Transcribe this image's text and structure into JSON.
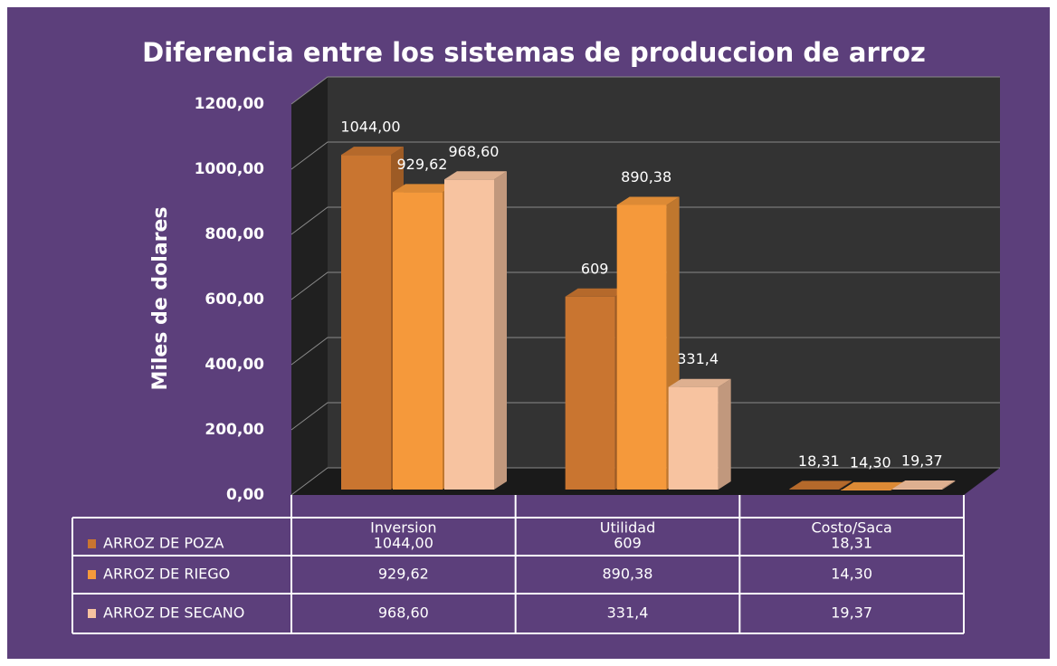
{
  "chart_data": {
    "type": "bar",
    "title": "Diferencia  entre los sistemas de produccion de arroz",
    "y_label": "Miles de dolares",
    "categories": [
      "Inversion",
      "Utilidad",
      "Costo/Saca"
    ],
    "series": [
      {
        "name": "ARROZ DE POZA",
        "color": "#c97530",
        "values": [
          1044,
          609,
          18.31
        ],
        "value_labels": [
          "1044,00",
          "609",
          "18,31"
        ]
      },
      {
        "name": "ARROZ DE RIEGO",
        "color": "#f5993b",
        "values": [
          929.62,
          890.38,
          14.3
        ],
        "value_labels": [
          "929,62",
          "890,38",
          "14,30"
        ]
      },
      {
        "name": "ARROZ DE SECANO",
        "color": "#f7c3a0",
        "values": [
          968.6,
          331.4,
          19.37
        ],
        "value_labels": [
          "968,60",
          "331,4",
          "19,37"
        ]
      }
    ],
    "ylim": [
      0,
      1200
    ],
    "yticks": [
      {
        "value": 0,
        "label": "0,00"
      },
      {
        "value": 200,
        "label": "200,00"
      },
      {
        "value": 400,
        "label": "400,00"
      },
      {
        "value": 600,
        "label": "600,00"
      },
      {
        "value": 800,
        "label": "800,00"
      },
      {
        "value": 1000,
        "label": "1000,00"
      },
      {
        "value": 1200,
        "label": "1200,00"
      }
    ],
    "grid": true
  }
}
